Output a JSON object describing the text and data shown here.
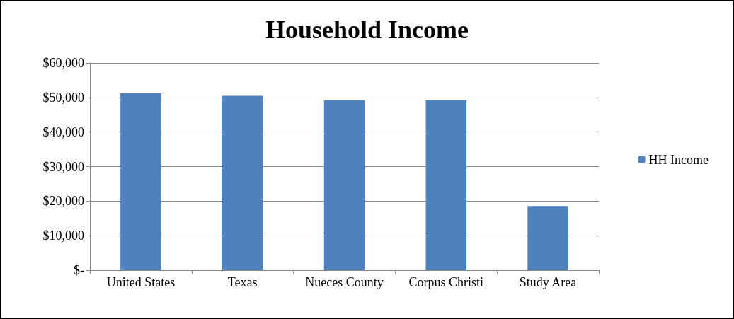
{
  "chart_data": {
    "type": "bar",
    "title": "Household Income",
    "categories": [
      "United States",
      "Texas",
      "Nueces County",
      "Corpus Christi",
      "Study Area"
    ],
    "series": [
      {
        "name": "HH Income",
        "color": "#4f81bd",
        "values": [
          51200,
          50500,
          49200,
          49200,
          18600
        ]
      }
    ],
    "ylim": [
      0,
      60000
    ],
    "yticks": [
      {
        "value": 0,
        "label": "$-"
      },
      {
        "value": 10000,
        "label": "$10,000"
      },
      {
        "value": 20000,
        "label": "$20,000"
      },
      {
        "value": 30000,
        "label": "$30,000"
      },
      {
        "value": 40000,
        "label": "$40,000"
      },
      {
        "value": 50000,
        "label": "$50,000"
      },
      {
        "value": 60000,
        "label": "$60,000"
      }
    ],
    "grid": "y",
    "legend": "right"
  }
}
